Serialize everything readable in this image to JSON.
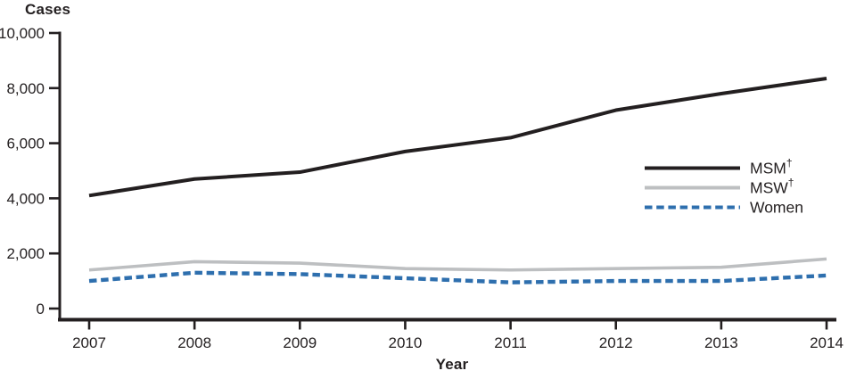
{
  "chart_data": {
    "type": "line",
    "title": "",
    "ylabel": "Cases",
    "xlabel": "Year",
    "categories": [
      "2007",
      "2008",
      "2009",
      "2010",
      "2011",
      "2012",
      "2013",
      "2014"
    ],
    "ylim": [
      0,
      10000
    ],
    "y_ticks": [
      0,
      2000,
      4000,
      6000,
      8000,
      10000
    ],
    "y_tick_labels": [
      "0",
      "2,000",
      "4,000",
      "6,000",
      "8,000",
      "10,000"
    ],
    "grid": false,
    "legend_position": "right-middle",
    "text_color": "#231f20",
    "series": [
      {
        "name": "MSM",
        "superscript": "†",
        "color": "#231f20",
        "line_style": "solid",
        "values": [
          4100,
          4700,
          4950,
          5700,
          6200,
          7200,
          7800,
          8350
        ]
      },
      {
        "name": "MSW",
        "superscript": "†",
        "color": "#bdbfc1",
        "line_style": "solid",
        "values": [
          1400,
          1700,
          1650,
          1450,
          1400,
          1450,
          1500,
          1800
        ]
      },
      {
        "name": "Women",
        "superscript": "",
        "color": "#2e6fae",
        "line_style": "dashed",
        "values": [
          1000,
          1300,
          1250,
          1100,
          950,
          1000,
          1000,
          1200
        ]
      }
    ]
  }
}
